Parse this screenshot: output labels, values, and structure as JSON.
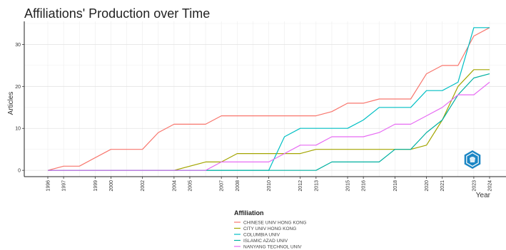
{
  "chart_data": {
    "type": "line",
    "title": "Affiliations' Production over Time",
    "xlabel": "Year",
    "ylabel": "Articles",
    "xlim": [
      1996,
      2024
    ],
    "ylim": [
      -1.5,
      35.5
    ],
    "x_ticks": [
      1996,
      1997,
      1999,
      2000,
      2002,
      2004,
      2005,
      2007,
      2008,
      2010,
      2012,
      2013,
      2015,
      2016,
      2018,
      2020,
      2021,
      2023,
      2024
    ],
    "y_ticks": [
      0,
      10,
      20,
      30
    ],
    "grid": true,
    "legend": {
      "title": "Affiliation",
      "placement": "bottom"
    },
    "series": [
      {
        "name": "CHINESE UNIV HONG KONG",
        "color": "#F8766D",
        "x": [
          1996,
          1997,
          1998,
          2000,
          2001,
          2002,
          2003,
          2004,
          2005,
          2006,
          2007,
          2008,
          2009,
          2010,
          2011,
          2012,
          2013,
          2014,
          2015,
          2016,
          2017,
          2018,
          2019,
          2020,
          2021,
          2022,
          2023,
          2024
        ],
        "values": [
          0,
          1,
          1,
          5,
          5,
          5,
          9,
          11,
          11,
          11,
          13,
          13,
          13,
          13,
          13,
          13,
          13,
          14,
          16,
          16,
          17,
          17,
          17,
          23,
          25,
          25,
          32,
          34
        ]
      },
      {
        "name": "CITY UNIV HONG KONG",
        "color": "#A3A500",
        "x": [
          1996,
          2004,
          2006,
          2007,
          2008,
          2009,
          2010,
          2011,
          2012,
          2013,
          2014,
          2015,
          2016,
          2017,
          2018,
          2019,
          2020,
          2021,
          2022,
          2023,
          2024
        ],
        "values": [
          0,
          0,
          2,
          2,
          4,
          4,
          4,
          4,
          4,
          5,
          5,
          5,
          5,
          5,
          5,
          5,
          6,
          12,
          20,
          24,
          24
        ]
      },
      {
        "name": "COLUMBIA UNIV",
        "color": "#00BFC4",
        "x": [
          1996,
          2009,
          2010,
          2011,
          2012,
          2013,
          2014,
          2015,
          2016,
          2017,
          2018,
          2019,
          2020,
          2021,
          2022,
          2023,
          2024
        ],
        "values": [
          0,
          0,
          0,
          8,
          10,
          10,
          10,
          10,
          12,
          15,
          15,
          15,
          19,
          19,
          21,
          34,
          34
        ]
      },
      {
        "name": "ISLAMIC AZAD UNIV",
        "color": "#00B0A0",
        "x": [
          1996,
          2013,
          2014,
          2015,
          2016,
          2017,
          2018,
          2019,
          2020,
          2021,
          2022,
          2023,
          2024
        ],
        "values": [
          0,
          0,
          2,
          2,
          2,
          2,
          5,
          5,
          9,
          12,
          18,
          22,
          23
        ]
      },
      {
        "name": "NANYANG TECHNOL UNIV",
        "color": "#E76BF3",
        "x": [
          1996,
          2006,
          2007,
          2008,
          2009,
          2010,
          2011,
          2012,
          2013,
          2014,
          2015,
          2016,
          2017,
          2018,
          2019,
          2020,
          2021,
          2022,
          2023,
          2024
        ],
        "values": [
          0,
          0,
          2,
          2,
          2,
          2,
          4,
          6,
          6,
          8,
          8,
          8,
          9,
          11,
          11,
          13,
          15,
          18,
          18,
          21
        ]
      }
    ]
  }
}
